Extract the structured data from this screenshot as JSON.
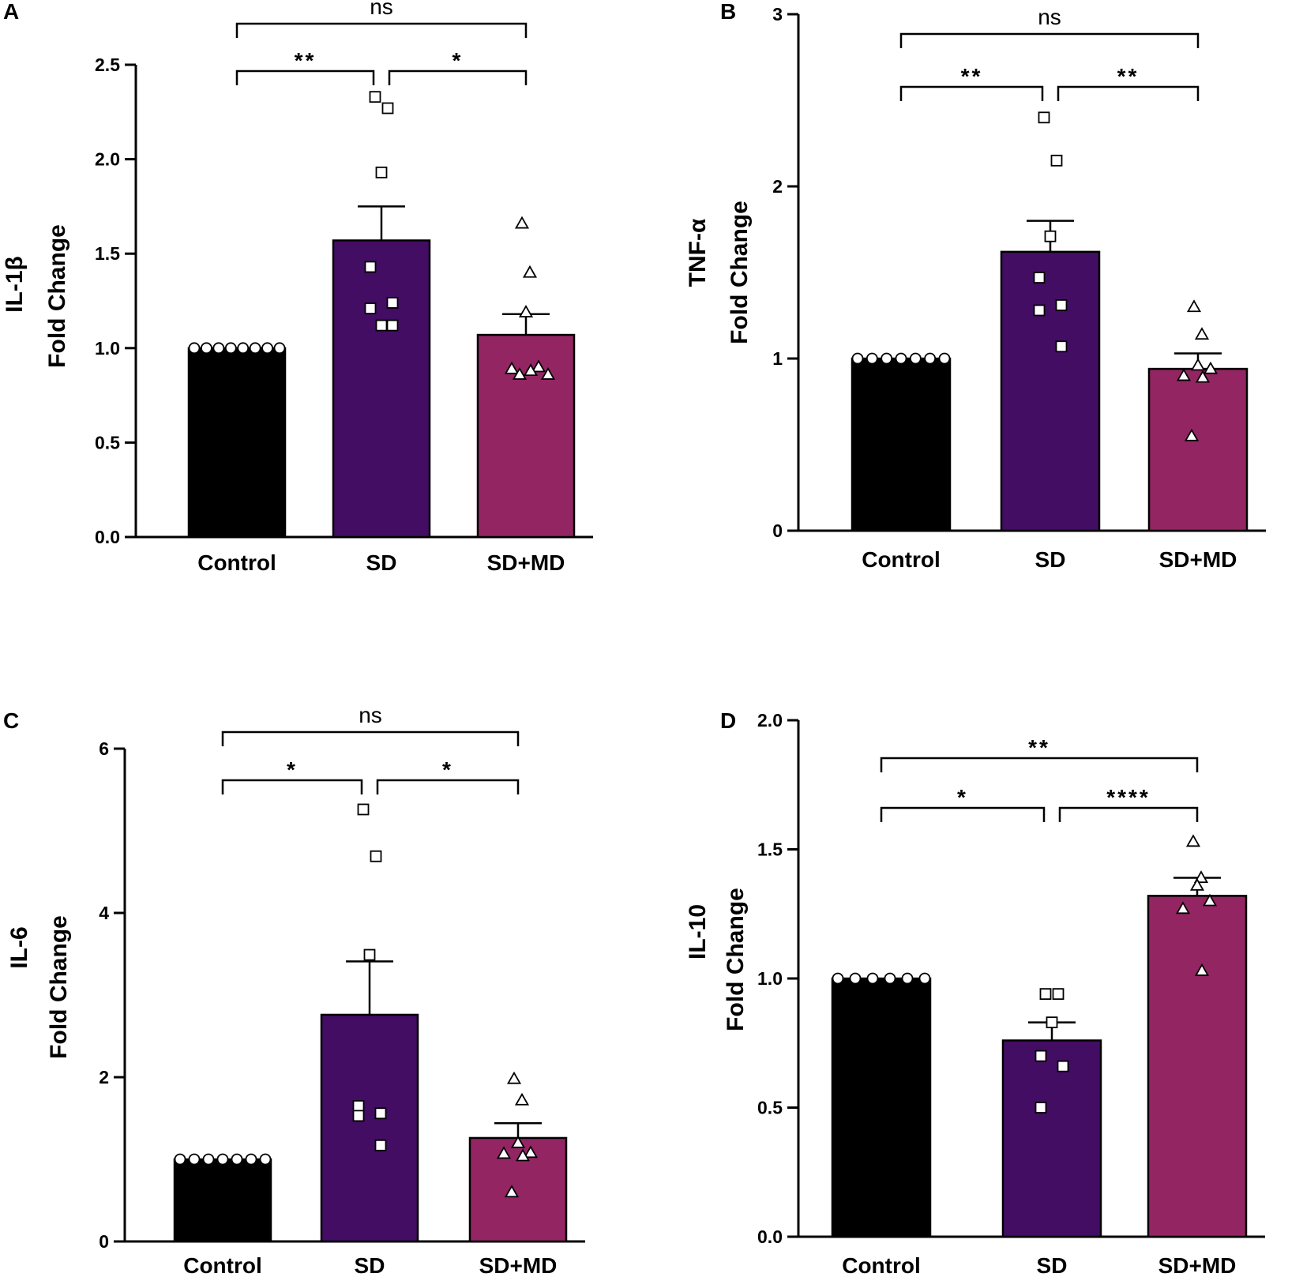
{
  "colors": {
    "control": "#000000",
    "sd": "#430d63",
    "sdmd": "#932563",
    "axis": "#000000",
    "marker_fill": "#ffffff"
  },
  "chart_data": [
    {
      "panel": "A",
      "type": "bar",
      "ylabel": [
        "IL-1β",
        "Fold Change"
      ],
      "ylim": [
        0,
        2.5
      ],
      "yticks": [
        0.0,
        0.5,
        1.0,
        1.5,
        2.0,
        2.5
      ],
      "ytick_labels": [
        "0.0",
        "0.5",
        "1.0",
        "1.5",
        "2.0",
        "2.5"
      ],
      "categories": [
        "Control",
        "SD",
        "SD+MD"
      ],
      "values": [
        1.0,
        1.57,
        1.07
      ],
      "errors": [
        0,
        0.18,
        0.11
      ],
      "markers": [
        "circle",
        "square",
        "triangle"
      ],
      "points": [
        [
          1,
          1,
          1,
          1,
          1,
          1,
          1,
          1
        ],
        [
          2.33,
          2.27,
          1.93,
          1.43,
          1.24,
          1.21,
          1.12,
          1.12
        ],
        [
          1.66,
          1.4,
          1.19,
          0.9,
          0.89,
          0.88,
          0.86,
          0.86
        ]
      ],
      "comparisons": [
        {
          "from": 0,
          "to": 2,
          "label": "ns",
          "level": 2
        },
        {
          "from": 0,
          "to": 1,
          "label": "**",
          "level": 1
        },
        {
          "from": 1,
          "to": 2,
          "label": "*",
          "level": 1
        }
      ]
    },
    {
      "panel": "B",
      "type": "bar",
      "ylabel": [
        "TNF-α",
        "Fold Change"
      ],
      "ylim": [
        0,
        3
      ],
      "yticks": [
        0,
        1,
        2,
        3
      ],
      "ytick_labels": [
        "0",
        "1",
        "2",
        "3"
      ],
      "categories": [
        "Control",
        "SD",
        "SD+MD"
      ],
      "values": [
        1.0,
        1.62,
        0.94
      ],
      "errors": [
        0,
        0.18,
        0.09
      ],
      "markers": [
        "circle",
        "square",
        "triangle"
      ],
      "points": [
        [
          1,
          1,
          1,
          1,
          1,
          1,
          1
        ],
        [
          2.4,
          2.15,
          1.71,
          1.47,
          1.31,
          1.28,
          1.07
        ],
        [
          1.3,
          1.14,
          0.96,
          0.94,
          0.9,
          0.89,
          0.55
        ]
      ],
      "comparisons": [
        {
          "from": 0,
          "to": 2,
          "label": "ns",
          "level": 2
        },
        {
          "from": 0,
          "to": 1,
          "label": "**",
          "level": 1
        },
        {
          "from": 1,
          "to": 2,
          "label": "**",
          "level": 1
        }
      ]
    },
    {
      "panel": "C",
      "type": "bar",
      "ylabel": [
        "IL-6",
        "Fold Change"
      ],
      "ylim": [
        0,
        6
      ],
      "yticks": [
        0,
        2,
        4,
        6
      ],
      "ytick_labels": [
        "0",
        "2",
        "4",
        "6"
      ],
      "categories": [
        "Control",
        "SD",
        "SD+MD"
      ],
      "values": [
        1.0,
        2.76,
        1.26
      ],
      "errors": [
        0,
        0.65,
        0.18
      ],
      "markers": [
        "circle",
        "square",
        "triangle"
      ],
      "points": [
        [
          1,
          1,
          1,
          1,
          1,
          1,
          1
        ],
        [
          5.26,
          4.69,
          3.49,
          1.65,
          1.56,
          1.53,
          1.17
        ],
        [
          1.98,
          1.72,
          1.2,
          1.08,
          1.07,
          1.04,
          0.6
        ]
      ],
      "comparisons": [
        {
          "from": 0,
          "to": 2,
          "label": "ns",
          "level": 2
        },
        {
          "from": 0,
          "to": 1,
          "label": "*",
          "level": 1
        },
        {
          "from": 1,
          "to": 2,
          "label": "*",
          "level": 1
        }
      ]
    },
    {
      "panel": "D",
      "type": "bar",
      "ylabel": [
        "IL-10",
        "Fold Change"
      ],
      "ylim": [
        0,
        2.0
      ],
      "yticks": [
        0.0,
        0.5,
        1.0,
        1.5,
        2.0
      ],
      "ytick_labels": [
        "0.0",
        "0.5",
        "1.0",
        "1.5",
        "2.0"
      ],
      "categories": [
        "Control",
        "SD",
        "SD+MD"
      ],
      "values": [
        1.0,
        0.76,
        1.32
      ],
      "errors": [
        0,
        0.07,
        0.07
      ],
      "markers": [
        "circle",
        "square",
        "triangle"
      ],
      "points": [
        [
          1,
          1,
          1,
          1,
          1,
          1
        ],
        [
          0.94,
          0.94,
          0.83,
          0.7,
          0.66,
          0.5
        ],
        [
          1.53,
          1.39,
          1.36,
          1.3,
          1.27,
          1.03
        ]
      ],
      "comparisons": [
        {
          "from": 0,
          "to": 2,
          "label": "**",
          "level": 2
        },
        {
          "from": 0,
          "to": 1,
          "label": "*",
          "level": 1
        },
        {
          "from": 1,
          "to": 2,
          "label": "****",
          "level": 1
        }
      ]
    }
  ]
}
